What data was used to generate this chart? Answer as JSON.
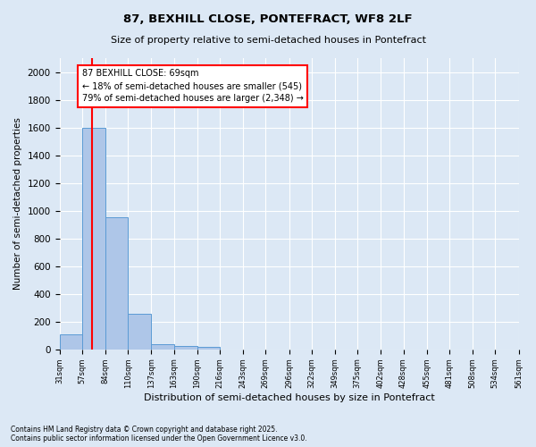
{
  "title1": "87, BEXHILL CLOSE, PONTEFRACT, WF8 2LF",
  "title2": "Size of property relative to semi-detached houses in Pontefract",
  "xlabel": "Distribution of semi-detached houses by size in Pontefract",
  "ylabel": "Number of semi-detached properties",
  "bins": [
    31,
    57,
    84,
    110,
    137,
    163,
    190,
    216,
    243,
    269,
    296,
    322,
    349,
    375,
    402,
    428,
    455,
    481,
    508,
    534,
    561
  ],
  "counts": [
    110,
    1600,
    950,
    260,
    35,
    25,
    20,
    0,
    0,
    0,
    0,
    0,
    0,
    0,
    0,
    0,
    0,
    0,
    0,
    0
  ],
  "bar_color": "#aec6e8",
  "bar_edge_color": "#5b9bd5",
  "property_size": 69,
  "red_line_x": 69,
  "annotation_text": "87 BEXHILL CLOSE: 69sqm\n← 18% of semi-detached houses are smaller (545)\n79% of semi-detached houses are larger (2,348) →",
  "annotation_box_color": "white",
  "annotation_box_edge_color": "red",
  "footer_text": "Contains HM Land Registry data © Crown copyright and database right 2025.\nContains public sector information licensed under the Open Government Licence v3.0.",
  "ylim": [
    0,
    2100
  ],
  "yticks": [
    0,
    200,
    400,
    600,
    800,
    1000,
    1200,
    1400,
    1600,
    1800,
    2000
  ],
  "background_color": "#dce8f5",
  "grid_color": "white"
}
